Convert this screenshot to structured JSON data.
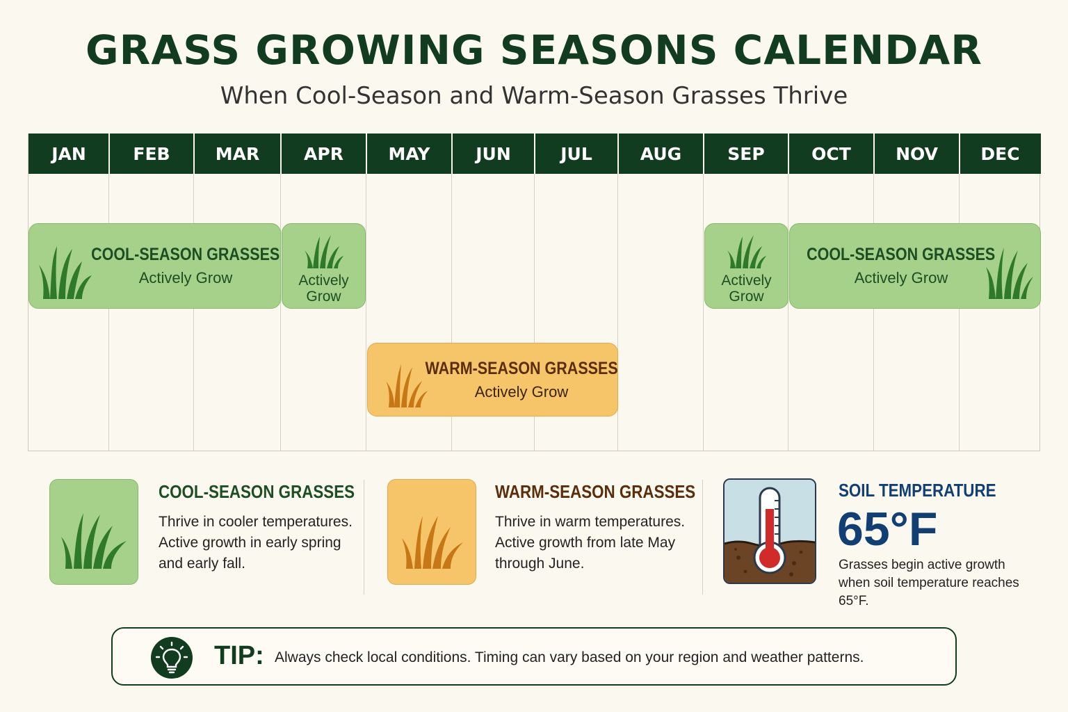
{
  "header": {
    "title": "GRASS GROWING SEASONS CALENDAR",
    "subtitle": "When Cool-Season and Warm-Season Grasses Thrive"
  },
  "calendar": {
    "months": [
      "JAN",
      "FEB",
      "MAR",
      "APR",
      "MAY",
      "JUN",
      "JUL",
      "AUG",
      "SEP",
      "OCT",
      "NOV",
      "DEC"
    ],
    "bars": {
      "cool_spring": {
        "title": "COOL-SEASON GRASSES",
        "subtitle": "Actively Grow"
      },
      "cool_april": {
        "line1": "Actively",
        "line2": "Grow"
      },
      "warm": {
        "title": "WARM-SEASON GRASSES",
        "subtitle": "Actively Grow"
      },
      "cool_sept": {
        "line1": "Actively",
        "line2": "Grow"
      },
      "cool_fall": {
        "title": "COOL-SEASON GRASSES",
        "subtitle": "Actively Grow"
      }
    }
  },
  "legend": {
    "cool": {
      "heading": "COOL-SEASON GRASSES",
      "lines": [
        "Thrive in cooler temperatures.",
        "Active growth in early spring",
        "and early fall."
      ]
    },
    "warm": {
      "heading": "WARM-SEASON GRASSES",
      "lines": [
        "Thrive in warm temperatures.",
        "Active growth from late May",
        "through June."
      ]
    },
    "soil": {
      "heading": "SOIL TEMPERATURE",
      "value": "65°F",
      "lines": [
        "Grasses begin active growth",
        "when soil temperature reaches",
        "65°F."
      ]
    }
  },
  "tip": {
    "label": "TIP:",
    "text": "Always check local conditions. Timing can vary based on your region and weather patterns."
  },
  "colors": {
    "dark_green": "#123c1f",
    "cool_fill": "#a6d18a",
    "warm_fill": "#f6c56a",
    "soil_blue": "#123f73"
  },
  "icons": [
    "grass-icon",
    "thermometer-icon",
    "lightbulb-icon"
  ]
}
